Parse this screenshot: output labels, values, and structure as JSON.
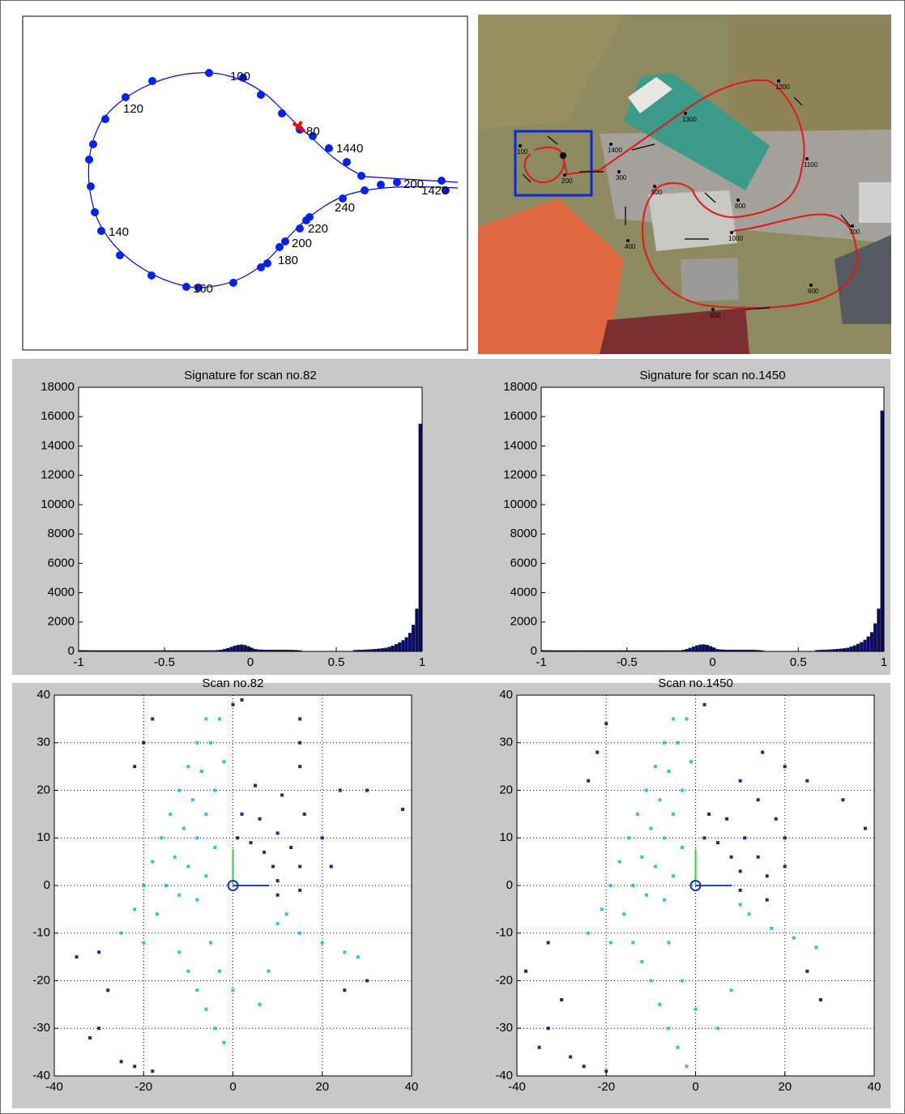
{
  "trajectory": {
    "labels": [
      "100",
      "120",
      "140",
      "160",
      "180",
      "200",
      "220",
      "240",
      "1440",
      "80",
      "200",
      "1420"
    ]
  },
  "aerial_map": {
    "labels": [
      "100",
      "200",
      "300",
      "400",
      "500",
      "600",
      "700",
      "800",
      "900",
      "1000",
      "1100",
      "1200",
      "1300",
      "1400"
    ]
  },
  "chart_data": [
    {
      "type": "histogram",
      "title": "Signature for scan no.82",
      "color": "#0a0a6e",
      "bins": [
        -1,
        -0.98,
        -0.96,
        -0.94,
        -0.92,
        -0.9,
        -0.88,
        -0.86,
        -0.84,
        -0.82,
        -0.8,
        -0.78,
        -0.76,
        -0.74,
        -0.72,
        -0.7,
        -0.68,
        -0.66,
        -0.64,
        -0.62,
        -0.6,
        -0.58,
        -0.56,
        -0.54,
        -0.52,
        -0.5,
        -0.48,
        -0.46,
        -0.44,
        -0.42,
        -0.4,
        -0.38,
        -0.36,
        -0.34,
        -0.32,
        -0.3,
        -0.28,
        -0.26,
        -0.24,
        -0.22,
        -0.2,
        -0.18,
        -0.16,
        -0.14,
        -0.12,
        -0.1,
        -0.08,
        -0.06,
        -0.04,
        -0.02,
        0,
        0.02,
        0.04,
        0.06,
        0.08,
        0.1,
        0.12,
        0.14,
        0.16,
        0.18,
        0.2,
        0.22,
        0.24,
        0.26,
        0.28,
        0.3,
        0.32,
        0.34,
        0.36,
        0.38,
        0.4,
        0.42,
        0.44,
        0.46,
        0.48,
        0.5,
        0.52,
        0.54,
        0.56,
        0.58,
        0.6,
        0.62,
        0.64,
        0.66,
        0.68,
        0.7,
        0.72,
        0.74,
        0.76,
        0.78,
        0.8,
        0.82,
        0.84,
        0.86,
        0.88,
        0.9,
        0.92,
        0.94,
        0.96,
        0.98,
        1
      ],
      "values": [
        70,
        70,
        70,
        60,
        60,
        60,
        60,
        60,
        60,
        60,
        60,
        60,
        60,
        60,
        60,
        60,
        60,
        60,
        60,
        60,
        60,
        60,
        60,
        60,
        60,
        60,
        60,
        60,
        60,
        60,
        60,
        60,
        60,
        60,
        60,
        60,
        60,
        60,
        60,
        60,
        80,
        100,
        150,
        220,
        300,
        380,
        430,
        460,
        420,
        340,
        240,
        150,
        120,
        110,
        100,
        100,
        100,
        100,
        100,
        100,
        100,
        100,
        90,
        80,
        60,
        20,
        20,
        20,
        20,
        20,
        20,
        20,
        20,
        20,
        20,
        20,
        20,
        20,
        20,
        20,
        80,
        90,
        100,
        110,
        120,
        140,
        160,
        180,
        200,
        240,
        300,
        380,
        480,
        600,
        750,
        950,
        1250,
        1800,
        2900,
        15500
      ],
      "xlim": [
        -1,
        1
      ],
      "xticks": [
        -1,
        -0.5,
        0,
        0.5,
        1
      ],
      "ylim": [
        0,
        18000
      ],
      "yticks": [
        0,
        2000,
        4000,
        6000,
        8000,
        10000,
        12000,
        14000,
        16000,
        18000
      ]
    },
    {
      "type": "histogram",
      "title": "Signature for scan no.1450",
      "color": "#0a0a6e",
      "bins": [
        -1,
        -0.98,
        -0.96,
        -0.94,
        -0.92,
        -0.9,
        -0.88,
        -0.86,
        -0.84,
        -0.82,
        -0.8,
        -0.78,
        -0.76,
        -0.74,
        -0.72,
        -0.7,
        -0.68,
        -0.66,
        -0.64,
        -0.62,
        -0.6,
        -0.58,
        -0.56,
        -0.54,
        -0.52,
        -0.5,
        -0.48,
        -0.46,
        -0.44,
        -0.42,
        -0.4,
        -0.38,
        -0.36,
        -0.34,
        -0.32,
        -0.3,
        -0.28,
        -0.26,
        -0.24,
        -0.22,
        -0.2,
        -0.18,
        -0.16,
        -0.14,
        -0.12,
        -0.1,
        -0.08,
        -0.06,
        -0.04,
        -0.02,
        0,
        0.02,
        0.04,
        0.06,
        0.08,
        0.1,
        0.12,
        0.14,
        0.16,
        0.18,
        0.2,
        0.22,
        0.24,
        0.26,
        0.28,
        0.3,
        0.32,
        0.34,
        0.36,
        0.38,
        0.4,
        0.42,
        0.44,
        0.46,
        0.48,
        0.5,
        0.52,
        0.54,
        0.56,
        0.58,
        0.6,
        0.62,
        0.64,
        0.66,
        0.68,
        0.7,
        0.72,
        0.74,
        0.76,
        0.78,
        0.8,
        0.82,
        0.84,
        0.86,
        0.88,
        0.9,
        0.92,
        0.94,
        0.96,
        0.98,
        1
      ],
      "values": [
        70,
        70,
        70,
        60,
        60,
        60,
        60,
        60,
        60,
        60,
        60,
        60,
        60,
        60,
        60,
        60,
        60,
        60,
        60,
        60,
        60,
        60,
        60,
        60,
        60,
        60,
        60,
        60,
        60,
        60,
        60,
        60,
        60,
        60,
        60,
        60,
        60,
        60,
        60,
        60,
        60,
        90,
        150,
        230,
        320,
        400,
        450,
        470,
        430,
        350,
        250,
        150,
        120,
        110,
        100,
        100,
        100,
        100,
        100,
        100,
        100,
        100,
        90,
        80,
        60,
        20,
        20,
        20,
        20,
        20,
        20,
        20,
        20,
        20,
        20,
        20,
        20,
        20,
        20,
        20,
        80,
        90,
        100,
        110,
        120,
        140,
        160,
        180,
        200,
        240,
        320,
        400,
        500,
        620,
        780,
        1000,
        1300,
        1900,
        2900,
        16400
      ],
      "xlim": [
        -1,
        1
      ],
      "xticks": [
        -1,
        -0.5,
        0,
        0.5,
        1
      ],
      "ylim": [
        0,
        18000
      ],
      "yticks": [
        0,
        2000,
        4000,
        6000,
        8000,
        10000,
        12000,
        14000,
        16000,
        18000
      ]
    },
    {
      "type": "scatter",
      "title": "Scan no.82",
      "grid": true,
      "series": [
        {
          "color": "#1b2a8c",
          "x": [
            1,
            4,
            7,
            9,
            10,
            10,
            2,
            6,
            10,
            13,
            15,
            15,
            5,
            11,
            16,
            20,
            22,
            15,
            15,
            15,
            24,
            30,
            38,
            -28,
            -30,
            -32,
            -25,
            -22,
            -18,
            -35,
            -30,
            -22,
            -20,
            -18,
            0,
            2,
            30,
            25
          ],
          "y": [
            10,
            9,
            7,
            4,
            1,
            -2,
            15,
            14,
            11,
            8,
            4,
            -1,
            21,
            19,
            15,
            10,
            4,
            25,
            30,
            35,
            20,
            20,
            16,
            -22,
            -30,
            -32,
            -37,
            -38,
            -39,
            -15,
            -14,
            25,
            30,
            35,
            38,
            39,
            -20,
            -22
          ]
        },
        {
          "color": "#33c0e0",
          "x": [
            -25,
            -22,
            -20,
            -18,
            -16,
            -14,
            -12,
            -10,
            -8,
            -6,
            -20,
            -17,
            -15,
            -13,
            -11,
            -9,
            -7,
            -5,
            -3,
            -12,
            -10,
            -8,
            -6,
            -4,
            -2,
            -8,
            -6,
            -4,
            -10,
            -8,
            -6,
            -4,
            -2,
            -12,
            -5,
            -3,
            0,
            6,
            8,
            10,
            15,
            20,
            25,
            28,
            12
          ],
          "y": [
            -10,
            -5,
            0,
            5,
            10,
            15,
            20,
            25,
            30,
            35,
            -12,
            -6,
            0,
            6,
            12,
            18,
            24,
            30,
            35,
            -2,
            4,
            10,
            15,
            20,
            26,
            -3,
            2,
            8,
            -18,
            -22,
            -26,
            -30,
            -33,
            -14,
            -12,
            -18,
            -22,
            -25,
            -18,
            -8,
            -10,
            -12,
            -14,
            -15,
            -6
          ]
        }
      ],
      "xlim": [
        -40,
        40
      ],
      "xticks": [
        -40,
        -20,
        0,
        20,
        40
      ],
      "ylim": [
        -40,
        40
      ],
      "yticks": [
        -40,
        -30,
        -20,
        -10,
        0,
        10,
        20,
        30,
        40
      ]
    },
    {
      "type": "scatter",
      "title": "Scan no.1450",
      "grid": true,
      "series": [
        {
          "color": "#1b2a8c",
          "x": [
            2,
            5,
            8,
            10,
            10,
            3,
            7,
            11,
            14,
            16,
            16,
            10,
            14,
            18,
            20,
            20,
            15,
            20,
            25,
            33,
            38,
            -30,
            -33,
            -35,
            -28,
            -25,
            -20,
            -38,
            -33,
            -24,
            -22,
            -20,
            2,
            25,
            28
          ],
          "y": [
            10,
            9,
            6,
            3,
            -1,
            15,
            14,
            10,
            6,
            2,
            -3,
            22,
            18,
            14,
            10,
            4,
            28,
            25,
            22,
            18,
            12,
            -24,
            -30,
            -34,
            -36,
            -38,
            -39,
            -18,
            -12,
            22,
            28,
            34,
            38,
            -18,
            -24
          ]
        },
        {
          "color": "#33c0e0",
          "x": [
            -24,
            -21,
            -19,
            -17,
            -15,
            -13,
            -11,
            -9,
            -7,
            -5,
            -19,
            -16,
            -14,
            -12,
            -10,
            -8,
            -6,
            -4,
            -2,
            -11,
            -9,
            -7,
            -5,
            -3,
            -1,
            -7,
            -5,
            -3,
            -12,
            -10,
            -8,
            -6,
            -4,
            -2,
            -14,
            -6,
            -3,
            0,
            5,
            8,
            12,
            17,
            22,
            27,
            10
          ],
          "y": [
            -10,
            -5,
            0,
            5,
            10,
            15,
            20,
            25,
            30,
            35,
            -12,
            -6,
            0,
            6,
            12,
            18,
            24,
            30,
            35,
            -2,
            4,
            10,
            15,
            20,
            26,
            -3,
            2,
            8,
            -16,
            -20,
            -25,
            -30,
            -34,
            -38,
            -12,
            -12,
            -20,
            -26,
            -30,
            -22,
            -6,
            -9,
            -11,
            -13,
            -4
          ]
        }
      ],
      "xlim": [
        -40,
        40
      ],
      "xticks": [
        -40,
        -20,
        0,
        20,
        40
      ],
      "ylim": [
        -40,
        40
      ],
      "yticks": [
        -40,
        -30,
        -20,
        -10,
        0,
        10,
        20,
        30,
        40
      ]
    }
  ]
}
